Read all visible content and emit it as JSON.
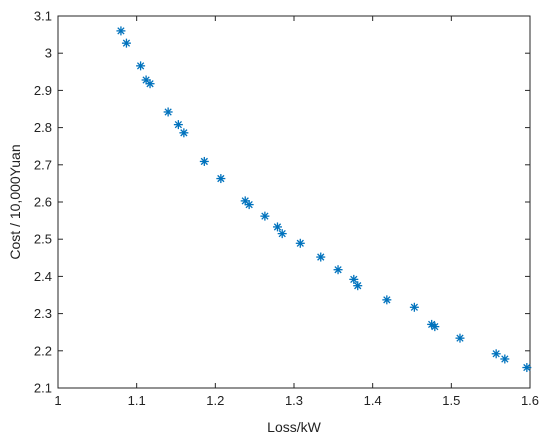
{
  "chart_data": {
    "type": "scatter",
    "title": "",
    "xlabel": "Loss/kW",
    "ylabel": "Cost / 10,000Yuan",
    "xlim": [
      1,
      1.6
    ],
    "ylim": [
      2.1,
      3.1
    ],
    "x_ticks": [
      "1",
      "1.1",
      "1.2",
      "1.3",
      "1.4",
      "1.5",
      "1.6"
    ],
    "y_ticks": [
      "2.1",
      "2.2",
      "2.3",
      "2.4",
      "2.5",
      "2.6",
      "2.7",
      "2.8",
      "2.9",
      "3",
      "3.1"
    ],
    "x_tick_values": [
      1,
      1.1,
      1.2,
      1.3,
      1.4,
      1.5,
      1.6
    ],
    "y_tick_values": [
      2.1,
      2.2,
      2.3,
      2.4,
      2.5,
      2.6,
      2.7,
      2.8,
      2.9,
      3.0,
      3.1
    ],
    "grid": false,
    "marker": "asterisk",
    "color": "#0072BD",
    "points": [
      [
        1.08,
        3.06
      ],
      [
        1.087,
        3.027
      ],
      [
        1.105,
        2.966
      ],
      [
        1.112,
        2.928
      ],
      [
        1.117,
        2.918
      ],
      [
        1.14,
        2.842
      ],
      [
        1.153,
        2.808
      ],
      [
        1.16,
        2.786
      ],
      [
        1.186,
        2.709
      ],
      [
        1.207,
        2.663
      ],
      [
        1.238,
        2.603
      ],
      [
        1.243,
        2.593
      ],
      [
        1.263,
        2.562
      ],
      [
        1.279,
        2.533
      ],
      [
        1.285,
        2.515
      ],
      [
        1.308,
        2.489
      ],
      [
        1.334,
        2.452
      ],
      [
        1.356,
        2.418
      ],
      [
        1.376,
        2.392
      ],
      [
        1.381,
        2.375
      ],
      [
        1.418,
        2.337
      ],
      [
        1.453,
        2.317
      ],
      [
        1.475,
        2.271
      ],
      [
        1.479,
        2.265
      ],
      [
        1.511,
        2.234
      ],
      [
        1.557,
        2.192
      ],
      [
        1.568,
        2.178
      ],
      [
        1.596,
        2.155
      ]
    ]
  }
}
